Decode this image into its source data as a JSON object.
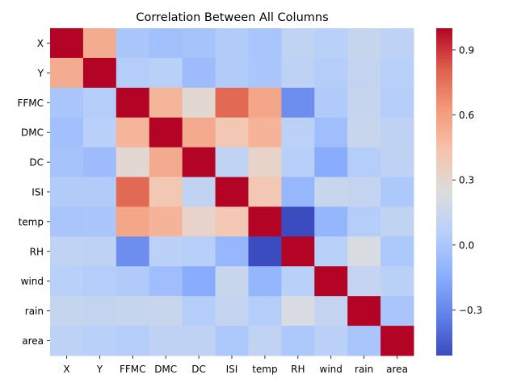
{
  "chart_data": {
    "type": "heatmap",
    "title": "Correlation Between All Columns",
    "xlabel": "",
    "ylabel": "",
    "categories": [
      "X",
      "Y",
      "FFMC",
      "DMC",
      "DC",
      "ISI",
      "temp",
      "RH",
      "wind",
      "rain",
      "area"
    ],
    "values": [
      [
        1.0,
        0.54,
        0.0,
        -0.04,
        -0.02,
        0.03,
        -0.01,
        0.1,
        0.06,
        0.13,
        0.08
      ],
      [
        0.54,
        1.0,
        0.04,
        0.06,
        -0.06,
        0.03,
        0.0,
        0.08,
        0.04,
        0.11,
        0.06
      ],
      [
        0.0,
        0.04,
        1.0,
        0.5,
        0.29,
        0.78,
        0.57,
        -0.27,
        0.02,
        0.13,
        0.04
      ],
      [
        -0.04,
        0.06,
        0.5,
        1.0,
        0.55,
        0.41,
        0.51,
        0.07,
        -0.05,
        0.14,
        0.09
      ],
      [
        -0.02,
        -0.06,
        0.29,
        0.55,
        1.0,
        0.1,
        0.32,
        0.05,
        -0.15,
        0.04,
        0.09
      ],
      [
        0.03,
        0.03,
        0.78,
        0.41,
        0.1,
        1.0,
        0.41,
        -0.09,
        0.14,
        0.12,
        0.01
      ],
      [
        -0.01,
        0.0,
        0.57,
        0.51,
        0.32,
        0.41,
        1.0,
        -0.51,
        -0.1,
        0.04,
        0.1
      ],
      [
        0.1,
        0.08,
        -0.27,
        0.07,
        0.05,
        -0.09,
        -0.51,
        1.0,
        0.06,
        0.22,
        0.01
      ],
      [
        0.06,
        0.04,
        0.02,
        -0.05,
        -0.15,
        0.14,
        -0.1,
        0.06,
        1.0,
        0.12,
        0.07
      ],
      [
        0.13,
        0.11,
        0.13,
        0.14,
        0.04,
        0.12,
        0.04,
        0.22,
        0.12,
        1.0,
        -0.01
      ],
      [
        0.08,
        0.06,
        0.04,
        0.09,
        0.09,
        0.01,
        0.1,
        0.01,
        0.07,
        -0.01,
        1.0
      ]
    ],
    "colormap": "coolwarm",
    "vmin": -0.51,
    "vmax": 1.0,
    "colorbar_ticks": [
      0.9,
      0.6,
      0.3,
      0.0,
      -0.3
    ],
    "colorbar_tick_labels": [
      "0.9",
      "0.6",
      "0.3",
      "0.0",
      "−0.3"
    ],
    "grid": false,
    "legend": "colorbar-right"
  }
}
